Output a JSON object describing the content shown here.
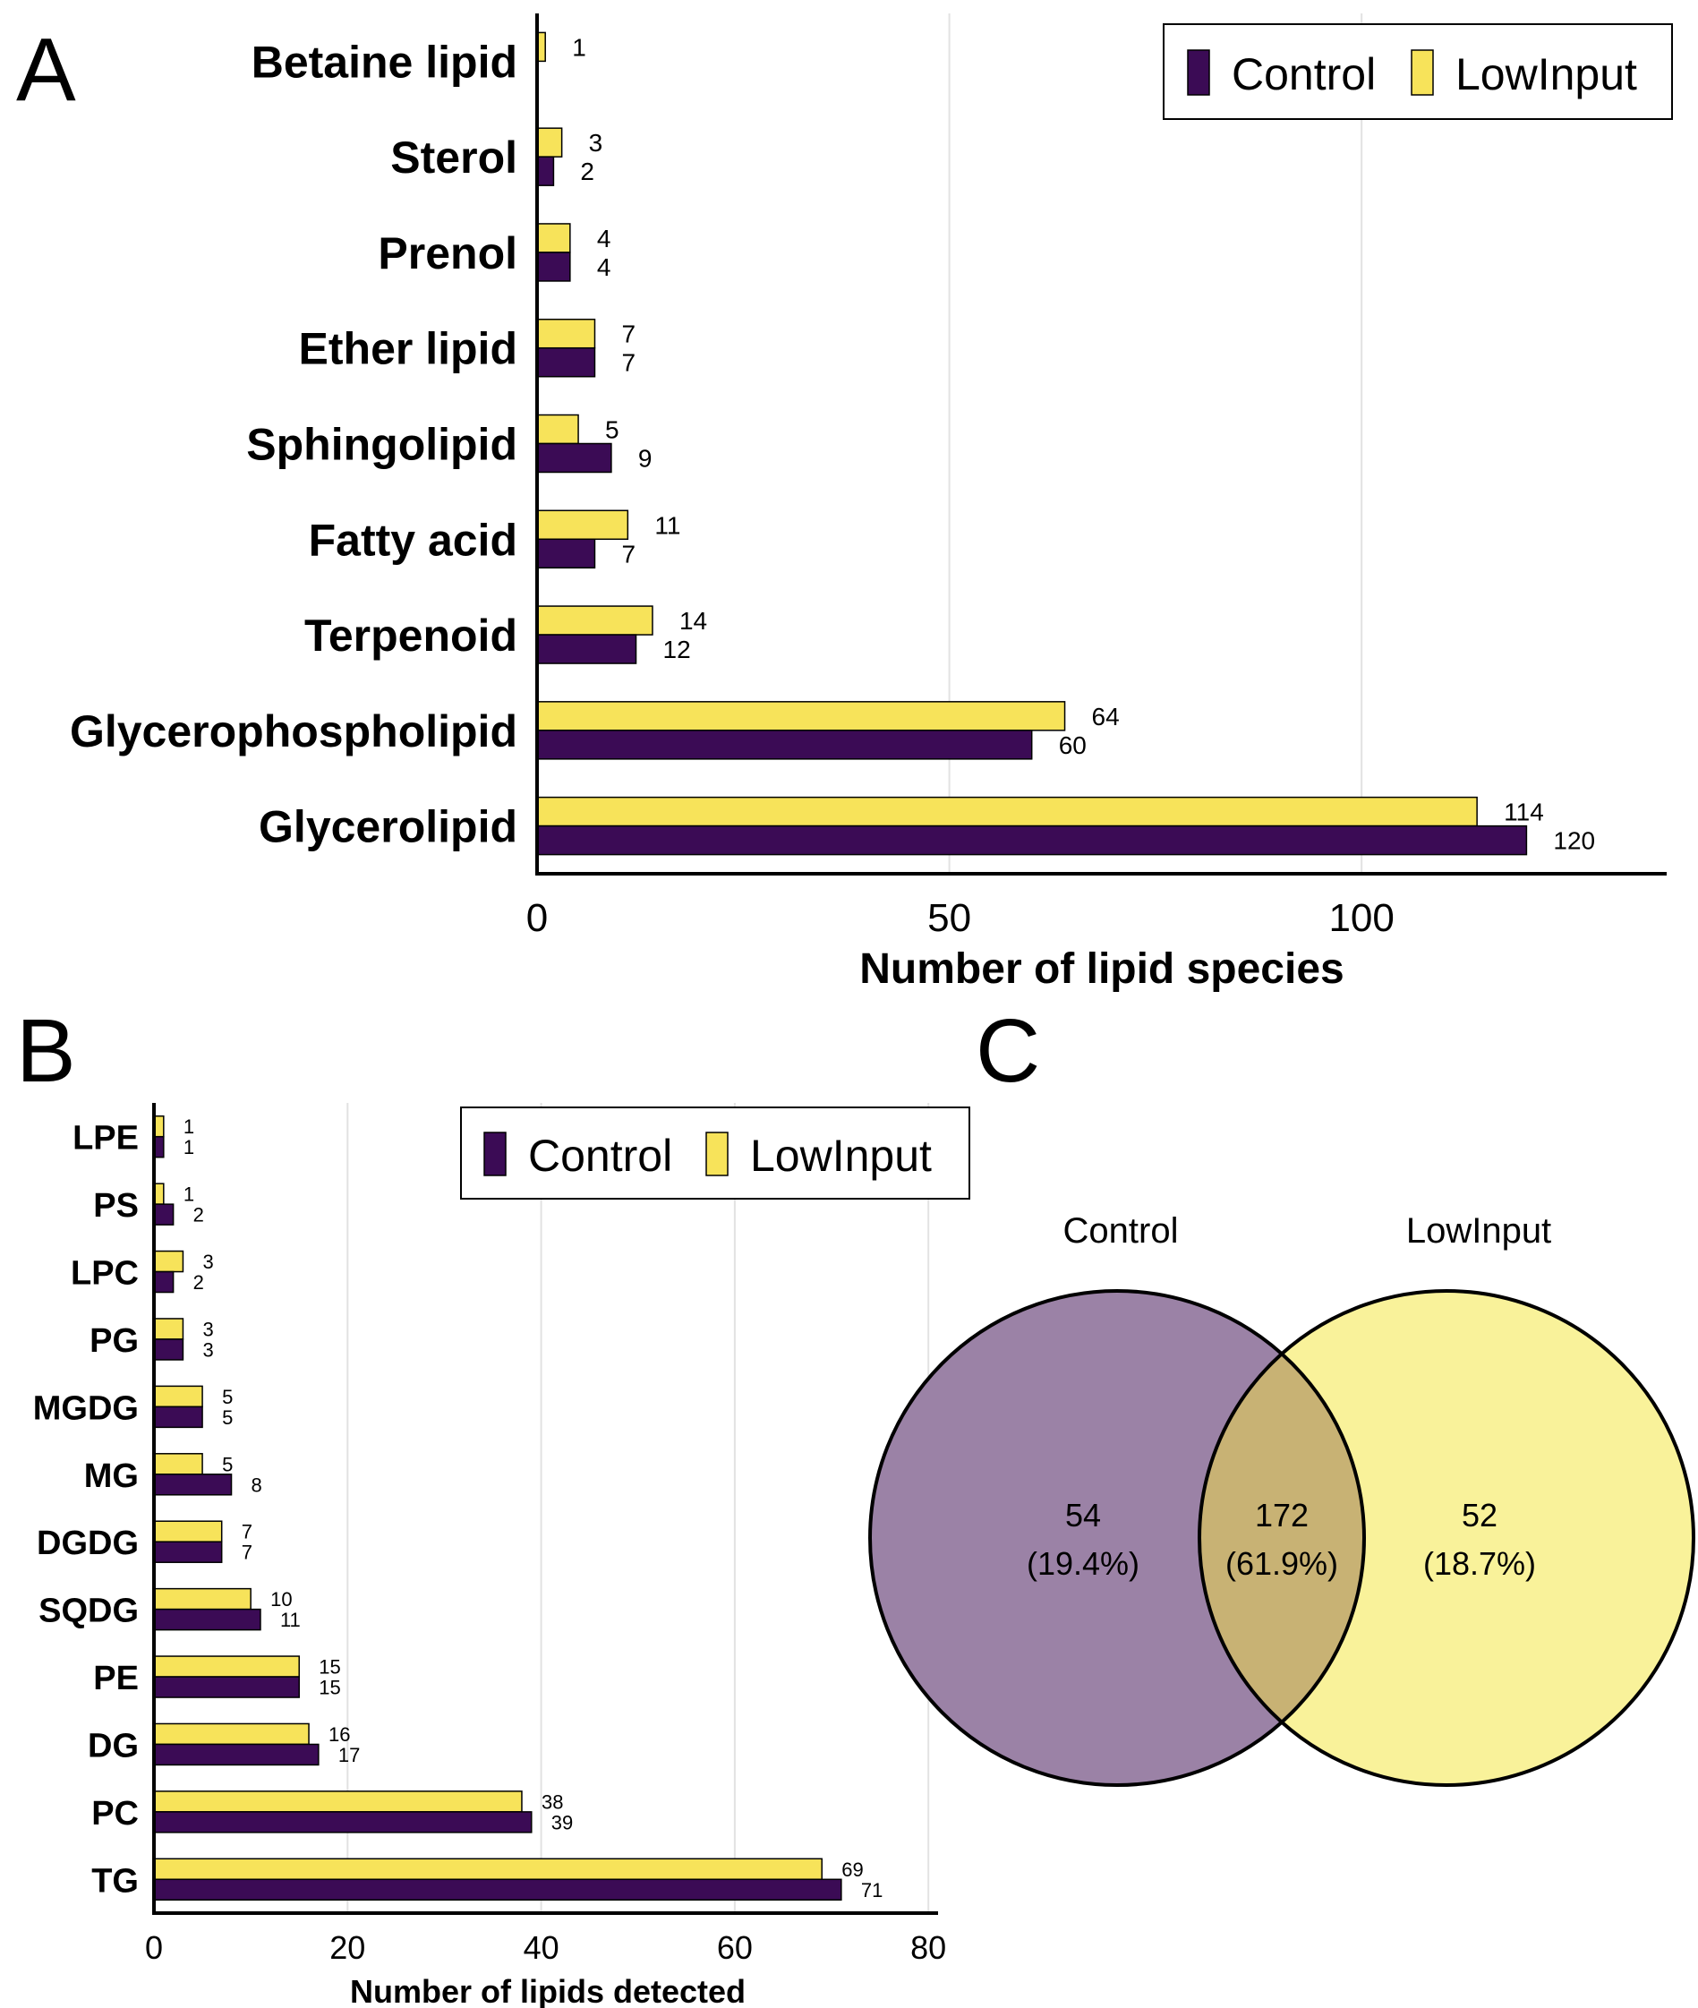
{
  "colors": {
    "control": "#3b0b55",
    "lowinput": "#f7e35a",
    "venn_control": "#9b82a6",
    "venn_lowinput": "#f9f29a",
    "venn_overlap": "#c8b274"
  },
  "panels": {
    "A": "A",
    "B": "B",
    "C": "C"
  },
  "chart_data": [
    {
      "id": "A",
      "type": "bar",
      "orientation": "horizontal",
      "categories": [
        "Betaine lipid",
        "Sterol",
        "Prenol",
        "Ether lipid",
        "Sphingolipid",
        "Fatty acid",
        "Terpenoid",
        "Glycerophospholipid",
        "Glycerolipid"
      ],
      "series": [
        {
          "name": "Control",
          "values": [
            null,
            2,
            4,
            7,
            9,
            7,
            12,
            60,
            120
          ],
          "labels": [
            "",
            "2",
            "4",
            "7",
            "9",
            "7",
            "12",
            "60",
            "120"
          ]
        },
        {
          "name": "LowInput",
          "values": [
            1,
            3,
            4,
            7,
            5,
            11,
            14,
            64,
            114
          ],
          "labels": [
            "1",
            "3",
            "4",
            "7",
            "5",
            "11",
            "14",
            "64",
            "114"
          ]
        }
      ],
      "xlabel": "Number of lipid species",
      "xlim": [
        0,
        137
      ],
      "xticks": [
        0,
        50,
        100
      ],
      "xtick_labels": [
        "0",
        "50",
        "100"
      ],
      "grid": true,
      "legend": "top-right"
    },
    {
      "id": "B",
      "type": "bar",
      "orientation": "horizontal",
      "categories": [
        "LPE",
        "PS",
        "LPC",
        "PG",
        "MGDG",
        "MG",
        "DGDG",
        "SQDG",
        "PE",
        "DG",
        "PC",
        "TG"
      ],
      "series": [
        {
          "name": "Control",
          "values": [
            1,
            2,
            2,
            3,
            5,
            8,
            7,
            11,
            15,
            17,
            39,
            71
          ],
          "labels": [
            "1",
            "2",
            "2",
            "3",
            "5",
            "8",
            "7",
            "11",
            "15",
            "17",
            "39",
            "71"
          ]
        },
        {
          "name": "LowInput",
          "values": [
            1,
            1,
            3,
            3,
            5,
            5,
            7,
            10,
            15,
            16,
            38,
            69
          ],
          "labels": [
            "1",
            "1",
            "3",
            "3",
            "5",
            "5",
            "7",
            "10",
            "15",
            "16",
            "38",
            "69"
          ]
        }
      ],
      "xlabel": "Number of lipids detected",
      "xlim": [
        0,
        81
      ],
      "xticks": [
        0,
        20,
        40,
        60,
        80
      ],
      "xtick_labels": [
        "0",
        "20",
        "40",
        "60",
        "80"
      ],
      "grid": true,
      "legend": "top-right"
    },
    {
      "id": "C",
      "type": "venn",
      "sets": [
        {
          "name": "Control",
          "only": "54",
          "pct": "(19.4%)"
        },
        {
          "name": "LowInput",
          "only": "52",
          "pct": "(18.7%)"
        }
      ],
      "overlap": {
        "value": "172",
        "pct": "(61.9%)"
      }
    }
  ]
}
